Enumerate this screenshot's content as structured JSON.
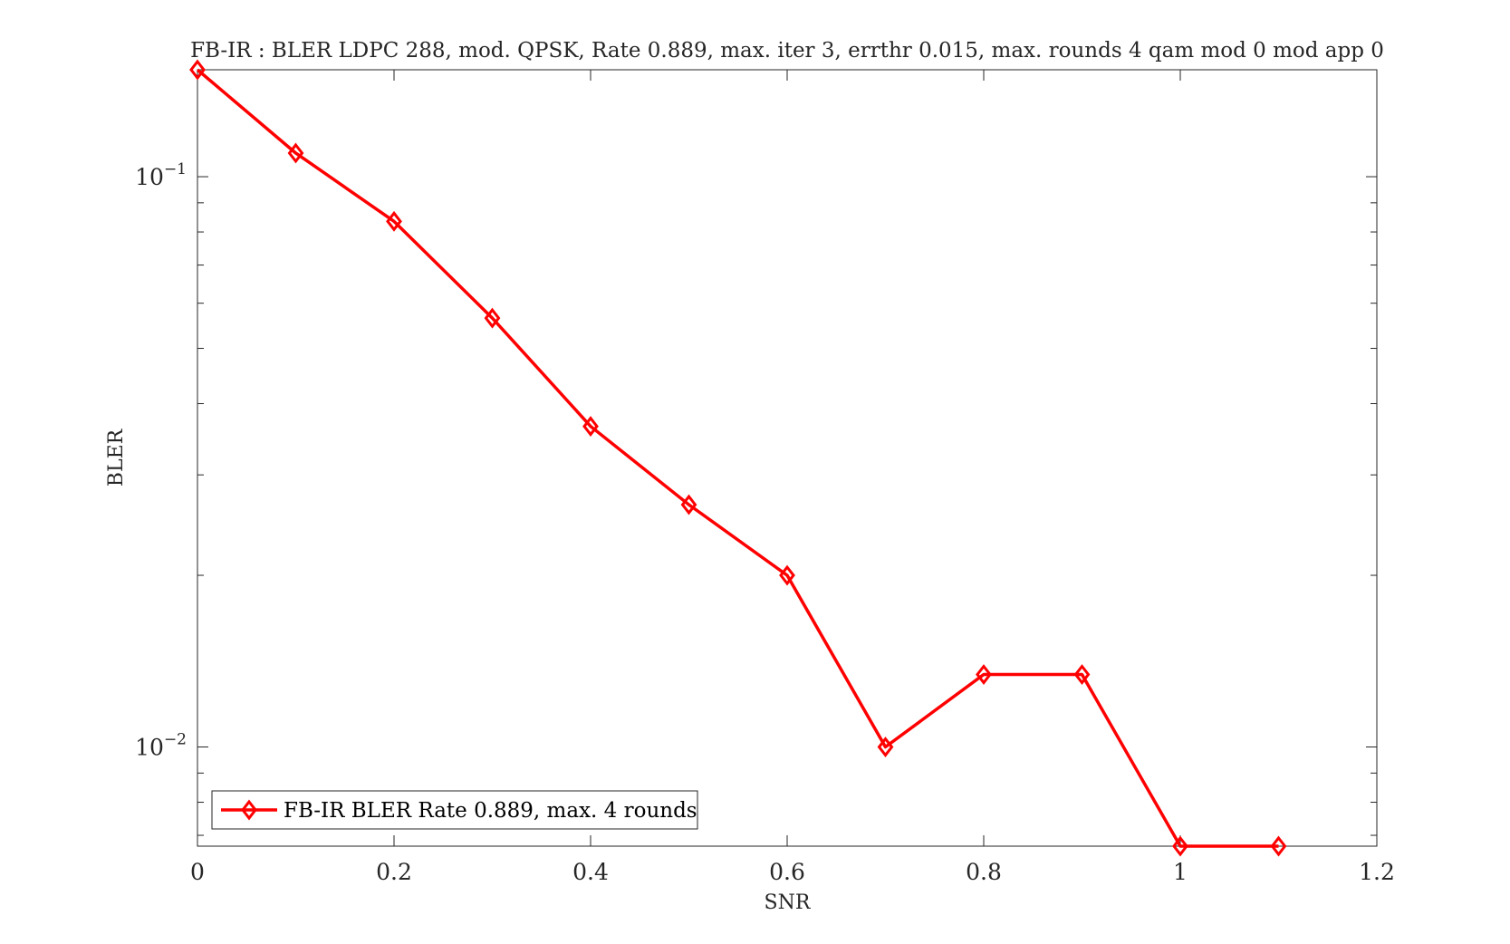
{
  "chart_data": {
    "type": "line",
    "title": "FB-IR : BLER LDPC 288, mod. QPSK, Rate 0.889, max. iter 3, errthr 0.015, max. rounds 4 qam mod 0 mod app 0",
    "xlabel": "SNR",
    "ylabel": "BLER",
    "xlim": [
      0,
      1.2
    ],
    "ylim": [
      0.0067,
      0.154
    ],
    "yscale": "log",
    "xticks": [
      0,
      0.2,
      0.4,
      0.6,
      0.8,
      1,
      1.2
    ],
    "xtick_labels": [
      "0",
      "0.2",
      "0.4",
      "0.6",
      "0.8",
      "1",
      "1.2"
    ],
    "yticks_major": [
      {
        "value": 0.1,
        "base": "10",
        "exponent": "−1"
      },
      {
        "value": 0.01,
        "base": "10",
        "exponent": "−2"
      }
    ],
    "grid": false,
    "legend_position": "bottom-left",
    "series": [
      {
        "name": "FB-IR BLER Rate 0.889, max. 4 rounds",
        "color": "#ff0000",
        "marker": "diamond",
        "x": [
          0,
          0.1,
          0.2,
          0.3,
          0.4,
          0.5,
          0.6,
          0.7,
          0.8,
          0.9,
          1.0,
          1.1
        ],
        "y": [
          0.154,
          0.11,
          0.0835,
          0.0565,
          0.0365,
          0.0266,
          0.02,
          0.01,
          0.0134,
          0.0134,
          0.0067,
          0.0067
        ]
      }
    ]
  }
}
